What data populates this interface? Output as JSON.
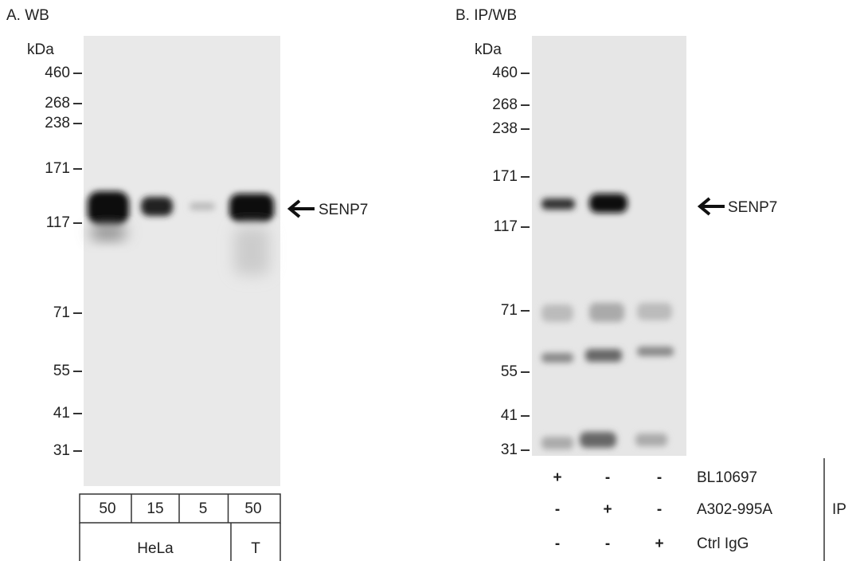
{
  "panels": [
    {
      "label": "A. WB",
      "unit": "kDa",
      "markers": [
        460,
        268,
        238,
        171,
        117,
        71,
        55,
        41,
        31
      ],
      "target": "SENP7",
      "lanes": [
        50,
        15,
        5,
        50
      ],
      "groups": [
        "HeLa",
        "T"
      ]
    },
    {
      "label": "B. IP/WB",
      "unit": "kDa",
      "markers": [
        460,
        268,
        238,
        171,
        117,
        71,
        55,
        41,
        31
      ],
      "target": "SENP7",
      "rows": [
        {
          "name": "BL10697",
          "signs": [
            "+",
            "-",
            "-"
          ]
        },
        {
          "name": "A302-995A",
          "signs": [
            "-",
            "+",
            "-"
          ]
        },
        {
          "name": "Ctrl IgG",
          "signs": [
            "-",
            "-",
            "+"
          ]
        }
      ],
      "group": "IP"
    }
  ]
}
